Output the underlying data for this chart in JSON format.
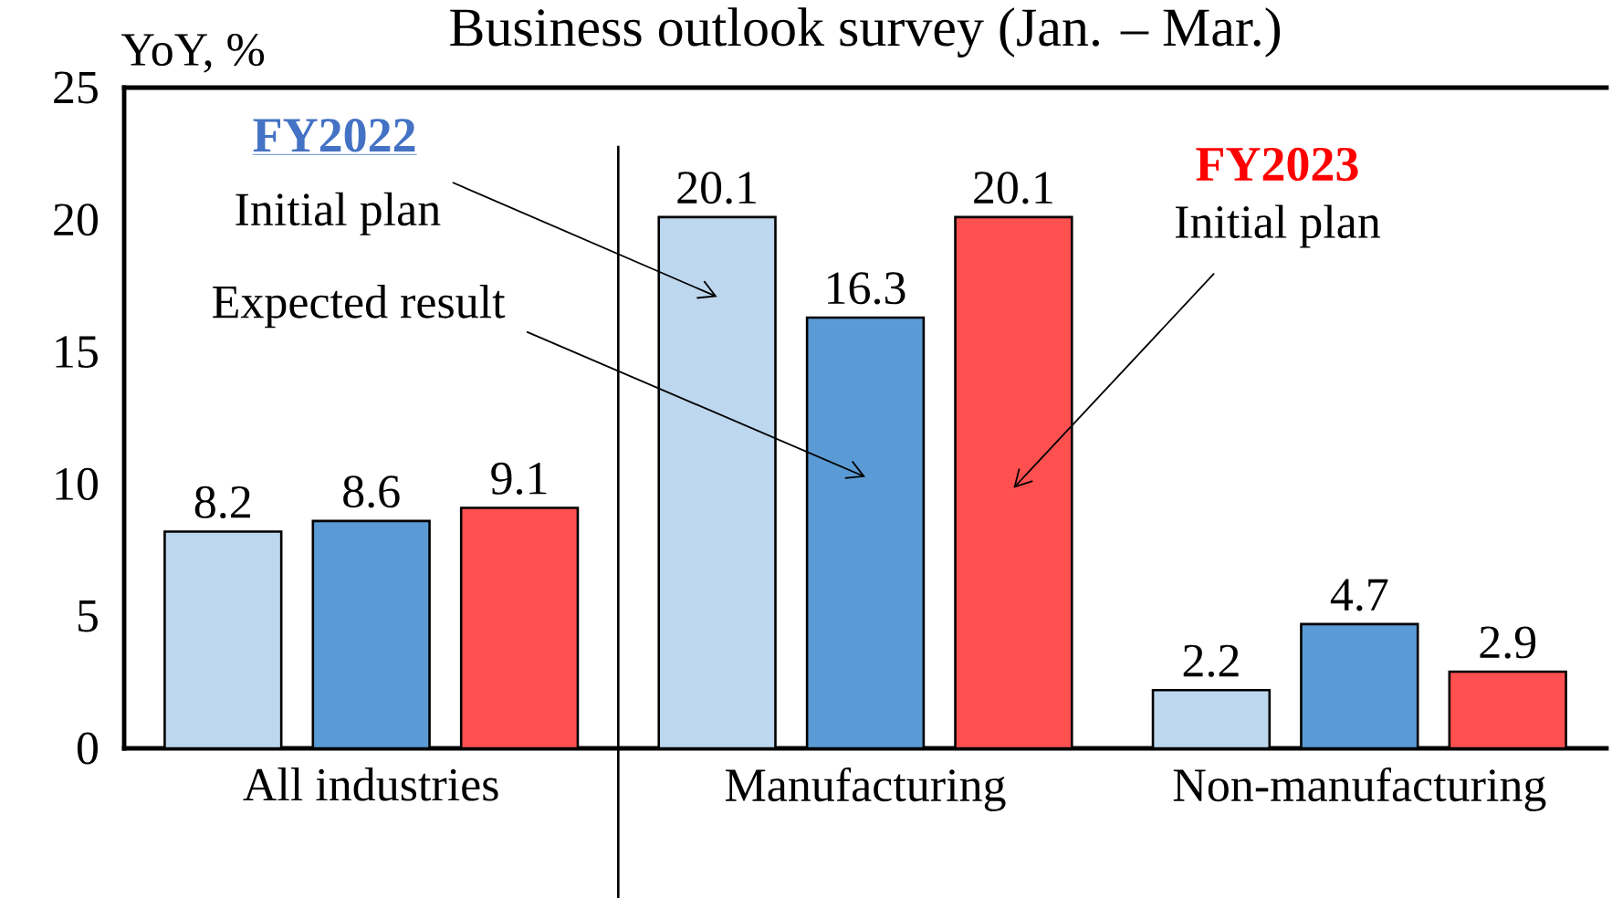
{
  "chart_data": {
    "type": "bar",
    "title": "Business outlook survey (Jan. – Mar.)",
    "ylabel": "YoY, %",
    "categories": [
      "All industries",
      "Manufacturing",
      "Non-manufacturing"
    ],
    "series": [
      {
        "name": "Initial plan",
        "color": "#bdd7ee",
        "values": [
          8.2,
          20.1,
          2.2
        ]
      },
      {
        "name": "Expected result",
        "color": "#5b9bd5",
        "values": [
          8.6,
          16.3,
          4.7
        ]
      },
      {
        "name": "Initial plan",
        "color": "#ff5050",
        "values": [
          9.1,
          20.1,
          2.9
        ]
      }
    ],
    "ylim": [
      0,
      25
    ],
    "yticks": [
      0,
      5,
      10,
      15,
      20,
      25
    ],
    "data_labels": true,
    "annotations": [
      "FY2022",
      "FY2023"
    ]
  }
}
